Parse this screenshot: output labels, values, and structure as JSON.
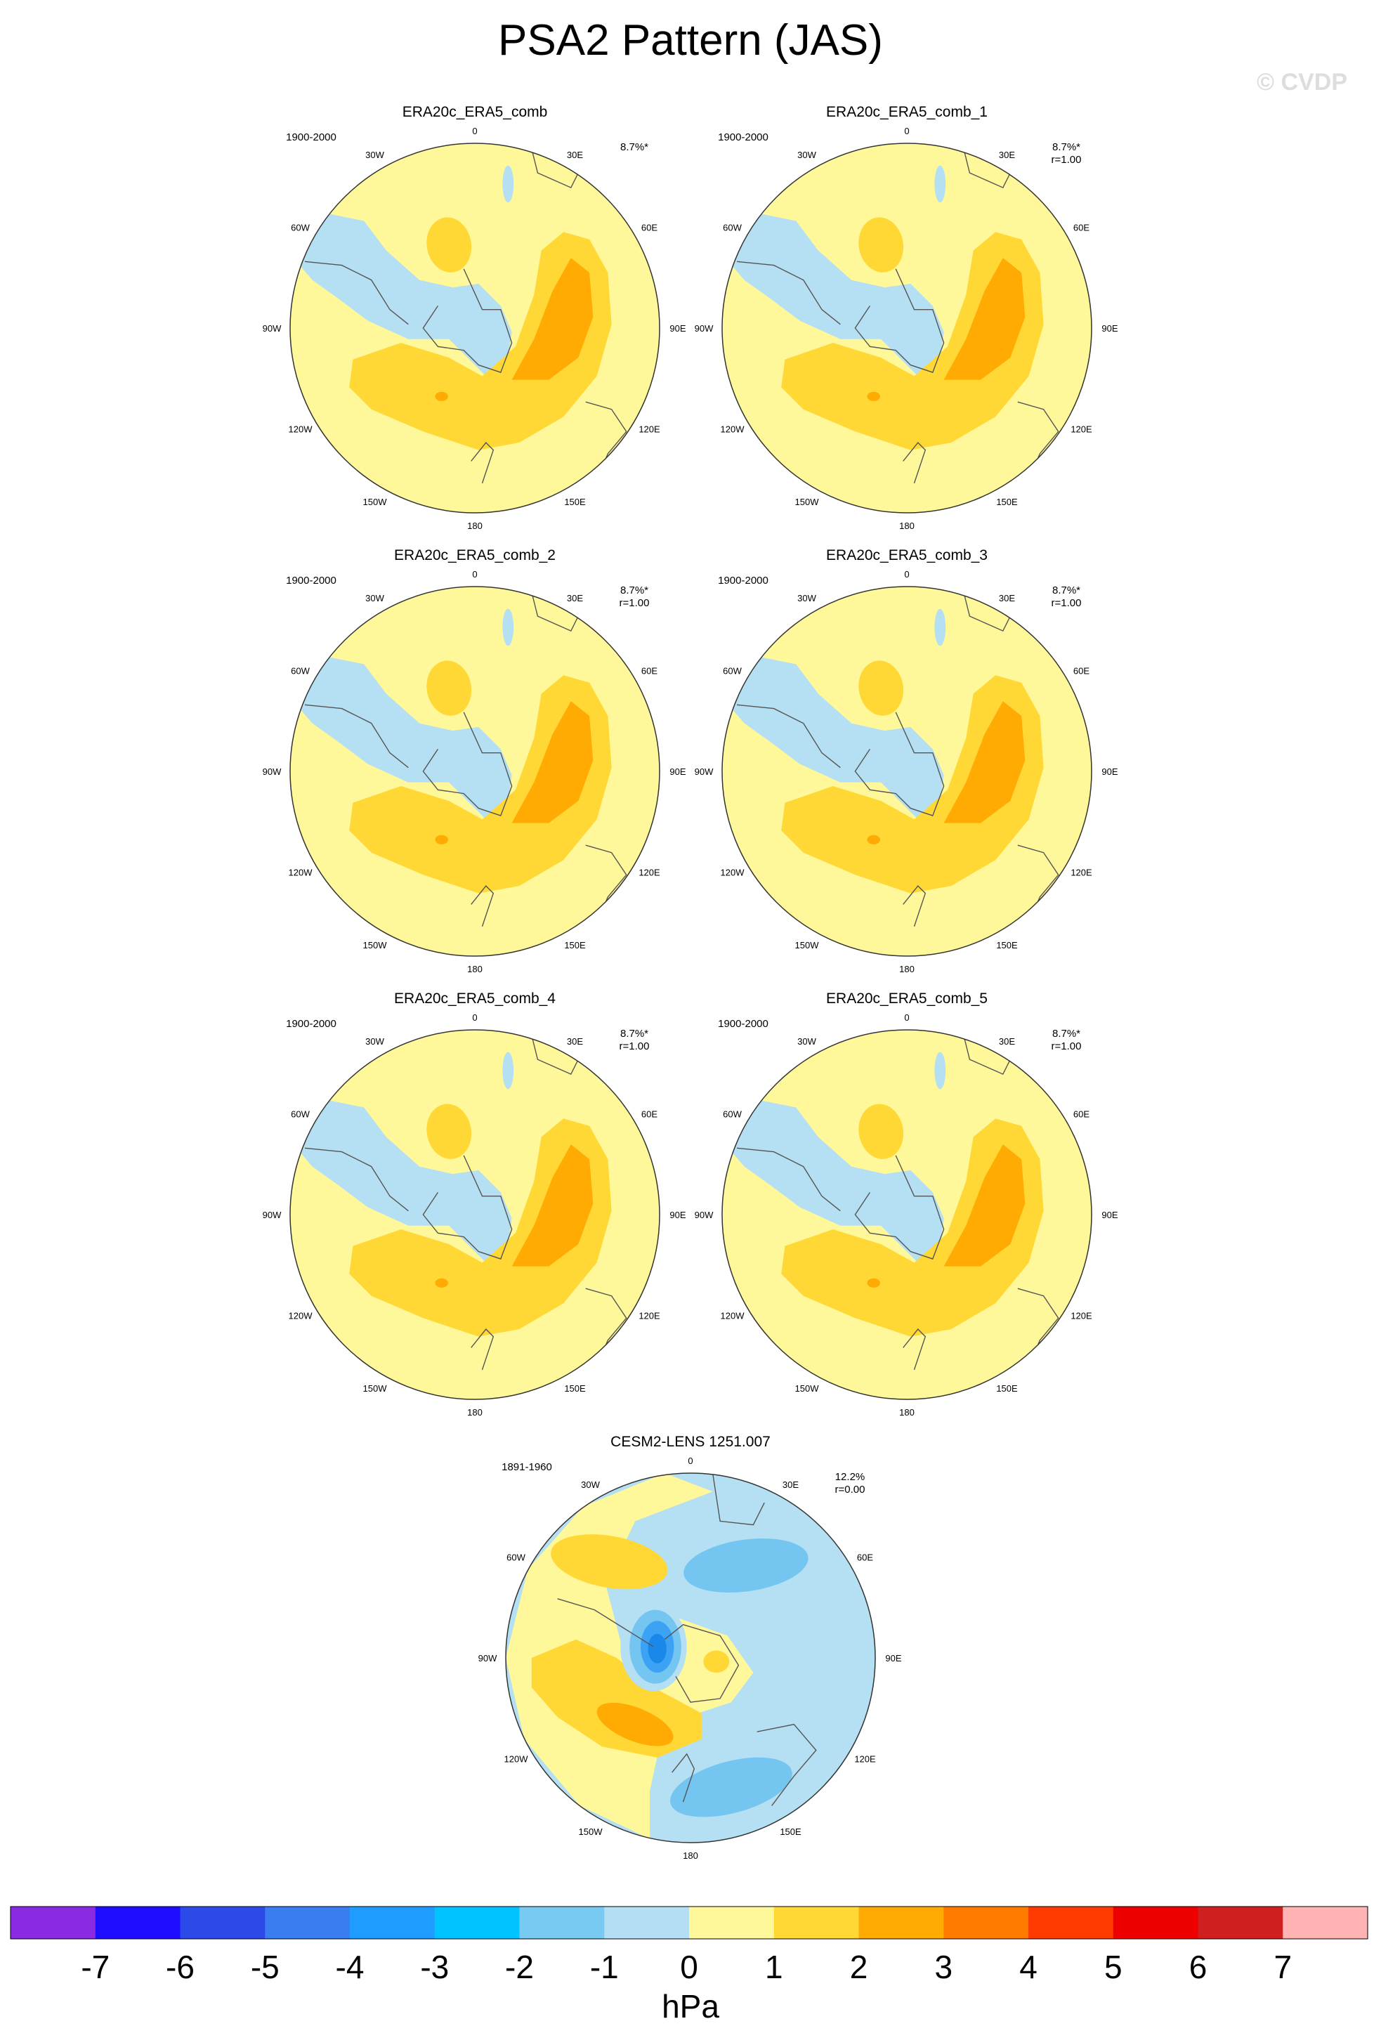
{
  "title": "PSA2 Pattern (JAS)",
  "watermark": "© CVDP",
  "colors": {
    "ocean_neg1": "#b5dff2",
    "zero": "#fff89a",
    "pos1": "#ffd835",
    "pos2": "#ffab03",
    "neg2": "#74c6f0",
    "neg3": "#3ba2f4",
    "neg4": "#1a88e8",
    "coast": "#555555"
  },
  "chart_data": [
    {
      "type": "heatmap",
      "projection": "south-polar-stereographic",
      "name": "ERA20c_ERA5_comb",
      "period": "1900-2000",
      "pct_variance": "8.7%*",
      "r_label": "",
      "lon_labels": [
        "0",
        "30E",
        "60E",
        "90E",
        "120E",
        "150E",
        "180",
        "150W",
        "120W",
        "90W",
        "60W",
        "30W"
      ],
      "pattern": "obs",
      "contour_levels_hPa": [
        -1,
        0,
        1,
        2
      ]
    },
    {
      "type": "heatmap",
      "projection": "south-polar-stereographic",
      "name": "ERA20c_ERA5_comb_1",
      "period": "1900-2000",
      "pct_variance": "8.7%*",
      "r_label": "r=1.00",
      "lon_labels": [
        "0",
        "30E",
        "60E",
        "90E",
        "120E",
        "150E",
        "180",
        "150W",
        "120W",
        "90W",
        "60W",
        "30W"
      ],
      "pattern": "obs",
      "contour_levels_hPa": [
        -1,
        0,
        1,
        2
      ]
    },
    {
      "type": "heatmap",
      "projection": "south-polar-stereographic",
      "name": "ERA20c_ERA5_comb_2",
      "period": "1900-2000",
      "pct_variance": "8.7%*",
      "r_label": "r=1.00",
      "lon_labels": [
        "0",
        "30E",
        "60E",
        "90E",
        "120E",
        "150E",
        "180",
        "150W",
        "120W",
        "90W",
        "60W",
        "30W"
      ],
      "pattern": "obs",
      "contour_levels_hPa": [
        -1,
        0,
        1,
        2
      ]
    },
    {
      "type": "heatmap",
      "projection": "south-polar-stereographic",
      "name": "ERA20c_ERA5_comb_3",
      "period": "1900-2000",
      "pct_variance": "8.7%*",
      "r_label": "r=1.00",
      "lon_labels": [
        "0",
        "30E",
        "60E",
        "90E",
        "120E",
        "150E",
        "180",
        "150W",
        "120W",
        "90W",
        "60W",
        "30W"
      ],
      "pattern": "obs",
      "contour_levels_hPa": [
        -1,
        0,
        1,
        2
      ]
    },
    {
      "type": "heatmap",
      "projection": "south-polar-stereographic",
      "name": "ERA20c_ERA5_comb_4",
      "period": "1900-2000",
      "pct_variance": "8.7%*",
      "r_label": "r=1.00",
      "lon_labels": [
        "0",
        "30E",
        "60E",
        "90E",
        "120E",
        "150E",
        "180",
        "150W",
        "120W",
        "90W",
        "60W",
        "30W"
      ],
      "pattern": "obs",
      "contour_levels_hPa": [
        -1,
        0,
        1,
        2
      ]
    },
    {
      "type": "heatmap",
      "projection": "south-polar-stereographic",
      "name": "ERA20c_ERA5_comb_5",
      "period": "1900-2000",
      "pct_variance": "8.7%*",
      "r_label": "r=1.00",
      "lon_labels": [
        "0",
        "30E",
        "60E",
        "90E",
        "120E",
        "150E",
        "180",
        "150W",
        "120W",
        "90W",
        "60W",
        "30W"
      ],
      "pattern": "obs",
      "contour_levels_hPa": [
        -1,
        0,
        1,
        2
      ]
    },
    {
      "type": "heatmap",
      "projection": "south-polar-stereographic",
      "name": "CESM2-LENS 1251.007",
      "period": "1891-1960",
      "pct_variance": "12.2%",
      "r_label": "r=0.00",
      "lon_labels": [
        "0",
        "30E",
        "60E",
        "90E",
        "120E",
        "150E",
        "180",
        "150W",
        "120W",
        "90W",
        "60W",
        "30W"
      ],
      "pattern": "model",
      "contour_levels_hPa": [
        -4,
        -3,
        -2,
        -1,
        0,
        1,
        2
      ]
    }
  ],
  "colorbar": {
    "unit": "hPa",
    "ticks": [
      "-7",
      "-6",
      "-5",
      "-4",
      "-3",
      "-2",
      "-1",
      "0",
      "1",
      "2",
      "3",
      "4",
      "5",
      "6",
      "7"
    ],
    "colors": [
      "#8a2be2",
      "#1e0dff",
      "#2b4ae8",
      "#3a7df0",
      "#1f9cff",
      "#00c3ff",
      "#78caf2",
      "#b4def3",
      "#fff89a",
      "#ffd835",
      "#ffab03",
      "#ff7b00",
      "#ff3a00",
      "#ee0000",
      "#cf1f1f",
      "#ffb3b3"
    ]
  }
}
